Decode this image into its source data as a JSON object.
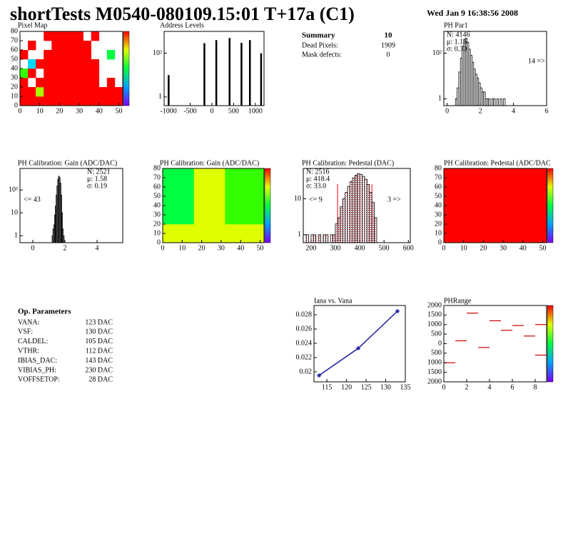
{
  "header": {
    "title": "shortTests M0540-080109.15:01 T+17a (C1)",
    "date": "Wed Jan  9 16:38:56 2008"
  },
  "summary": {
    "title": "Summary",
    "value": "10",
    "rows": [
      [
        "Dead Pixels:",
        "1909"
      ],
      [
        "Mask defects:",
        "0"
      ]
    ]
  },
  "op_parameters": {
    "title": "Op. Parameters",
    "rows": [
      [
        "VANA:",
        "123 DAC"
      ],
      [
        "VSF:",
        "130 DAC"
      ],
      [
        "CALDEL:",
        "105 DAC"
      ],
      [
        "VTHR:",
        "112 DAC"
      ],
      [
        "IBIAS_DAC:",
        "143 DAC"
      ],
      [
        "VIBIAS_PH:",
        "230 DAC"
      ],
      [
        "VOFFSETOP:",
        "28 DAC"
      ]
    ]
  },
  "chart_data": [
    {
      "type": "heatmap",
      "title": "Pixel Map",
      "xlim": [
        0,
        52
      ],
      "ylim": [
        0,
        80
      ],
      "xticks": [
        0,
        10,
        20,
        30,
        40,
        50
      ],
      "yticks": [
        0,
        10,
        20,
        30,
        40,
        50,
        60,
        70,
        80
      ],
      "zlim": [
        0,
        10
      ],
      "z": [
        [
          10,
          10,
          10,
          10,
          10,
          10,
          10,
          10,
          10,
          10,
          10,
          10,
          10
        ],
        [
          10,
          10,
          7,
          10,
          10,
          10,
          10,
          10,
          10,
          10,
          10,
          10,
          10
        ],
        [
          10,
          null,
          10,
          10,
          10,
          10,
          10,
          10,
          10,
          10,
          null,
          10,
          null
        ],
        [
          6,
          10,
          null,
          10,
          10,
          10,
          10,
          10,
          10,
          10,
          null,
          null,
          null
        ],
        [
          null,
          3,
          10,
          10,
          10,
          10,
          10,
          10,
          10,
          10,
          null,
          null,
          null
        ],
        [
          10,
          null,
          null,
          10,
          10,
          10,
          10,
          10,
          10,
          null,
          null,
          5,
          null
        ],
        [
          null,
          10,
          null,
          null,
          10,
          10,
          10,
          10,
          10,
          null,
          null,
          null,
          null
        ],
        [
          null,
          null,
          null,
          10,
          10,
          10,
          10,
          10,
          null,
          10,
          null,
          null,
          null
        ]
      ]
    },
    {
      "type": "bar",
      "title": "Address Levels",
      "log_y": true,
      "xlim": [
        -1100,
        1200
      ],
      "ylim": [
        0.4,
        1000
      ],
      "xticks": [
        -1000,
        -500,
        0,
        500,
        1000
      ],
      "yticks": [
        1,
        {
          "value": 100,
          "label": "10²"
        }
      ],
      "color": "#000000",
      "x": [
        -1000,
        -177,
        97,
        403,
        677,
        871,
        1129
      ],
      "values": [
        10,
        290,
        400,
        500,
        300,
        400,
        100
      ]
    },
    {
      "type": "histogram",
      "title": "PH Par1",
      "log_y": true,
      "xlim": [
        -0.2,
        6
      ],
      "ylim": [
        0.5,
        900
      ],
      "xticks": [
        0,
        2,
        4,
        6
      ],
      "yticks": [
        1,
        {
          "value": 100,
          "label": "10²"
        }
      ],
      "color": "#000000",
      "stats": [
        {
          "text": "N: 4146"
        },
        {
          "text": "μ: 1.16"
        },
        {
          "text": "σ: 0.30"
        }
      ],
      "annotations": [
        "14 =>"
      ],
      "bins": [
        0.5,
        0.6,
        0.7,
        0.8,
        0.9,
        1.0,
        1.1,
        1.2,
        1.3,
        1.4,
        1.5,
        1.6,
        1.7,
        1.8,
        1.9,
        2.0,
        2.1,
        2.2,
        2.3,
        2.4,
        2.5,
        2.6,
        2.7,
        2.8,
        2.9,
        3.0,
        3.1,
        3.2,
        3.3,
        3.4,
        3.5
      ],
      "values": [
        1,
        3,
        15,
        60,
        200,
        400,
        450,
        300,
        150,
        80,
        40,
        20,
        12,
        8,
        5,
        3,
        2,
        2,
        1,
        1,
        1,
        0,
        1,
        1,
        0,
        1,
        0,
        1,
        0,
        1
      ]
    },
    {
      "type": "histogram",
      "title": "PH Calibration: Gain (ADC/DAC)",
      "log_y": true,
      "xlim": [
        -0.8,
        5.6
      ],
      "ylim": [
        0.5,
        870
      ],
      "xticks": [
        0,
        2,
        4
      ],
      "yticks": [
        1,
        10,
        {
          "value": 100,
          "label": "10²"
        }
      ],
      "color": "#000000",
      "stats": [
        {
          "text": "N: 2521"
        },
        {
          "text": "μ: 1.58"
        },
        {
          "text": "σ: 0.19"
        }
      ],
      "annotations": [
        "<= 43"
      ],
      "bins": [
        1.2,
        1.25,
        1.3,
        1.35,
        1.4,
        1.45,
        1.5,
        1.55,
        1.6,
        1.65,
        1.7,
        1.75,
        1.8,
        1.85,
        1.9,
        1.95
      ],
      "values": [
        1,
        2,
        3,
        8,
        20,
        60,
        150,
        300,
        400,
        350,
        200,
        60,
        10,
        2,
        1
      ]
    },
    {
      "type": "heatmap",
      "title": "PH Calibration: Gain (ADC/DAC)",
      "xlim": [
        0,
        52
      ],
      "ylim": [
        0,
        80
      ],
      "xticks": [
        0,
        10,
        20,
        30,
        40,
        50
      ],
      "yticks": [
        0,
        10,
        20,
        30,
        40,
        50,
        60,
        70,
        80
      ],
      "zlim": [
        0,
        10
      ],
      "z": [
        [
          7.5,
          7.5,
          7.5,
          7.5,
          7.5,
          7.5,
          7.5,
          7.5,
          7.5,
          7.5,
          7.5,
          7.5,
          7.5
        ],
        [
          7.5,
          7.5,
          7.5,
          7.5,
          7.5,
          7.5,
          7.5,
          7.5,
          7.5,
          7.5,
          7.5,
          7.5,
          7.5
        ],
        [
          5,
          5,
          5,
          5,
          7.5,
          7.5,
          7.5,
          7.5,
          6,
          6,
          6,
          6,
          6
        ],
        [
          5,
          5,
          5,
          5,
          7.5,
          7.5,
          7.5,
          7.5,
          6,
          6,
          6,
          6,
          6
        ],
        [
          5,
          5,
          5,
          5,
          7.5,
          7.5,
          7.5,
          7.5,
          6,
          6,
          6,
          6,
          6
        ],
        [
          5,
          5,
          5,
          5,
          7.5,
          7.5,
          7.5,
          7.5,
          6,
          6,
          6,
          6,
          6
        ],
        [
          5,
          5,
          5,
          5,
          7.5,
          7.5,
          7.5,
          7.5,
          6,
          6,
          6,
          6,
          6
        ],
        [
          5,
          5,
          5,
          5,
          7.5,
          7.5,
          7.5,
          7.5,
          6,
          6,
          6,
          6,
          6
        ]
      ]
    },
    {
      "type": "histogram",
      "title": "PH Calibration: Pedestal (DAC)",
      "log_y": true,
      "xlim": [
        168,
        608
      ],
      "ylim": [
        0.6,
        70
      ],
      "xticks": [
        200,
        300,
        400,
        500,
        600
      ],
      "yticks": [
        1,
        10
      ],
      "color": "#000000",
      "fill": "#e8a0a8",
      "stats": [
        {
          "text": "N: 2516"
        },
        {
          "text": "μ: 418.4",
          "color": "#ff0000"
        },
        {
          "text": "σ: 33.0",
          "color": "#ff0000"
        }
      ],
      "annotations": [
        "<= 9",
        "3 =>"
      ],
      "markers": [
        309,
        450
      ],
      "marker_color": "#ff0000",
      "bins": [
        180,
        190,
        200,
        210,
        220,
        230,
        240,
        250,
        260,
        270,
        280,
        290,
        300,
        310,
        320,
        330,
        340,
        350,
        360,
        370,
        380,
        390,
        400,
        410,
        420,
        430,
        440,
        450,
        460,
        470
      ],
      "values": [
        1,
        0,
        1,
        1,
        0,
        1,
        0,
        1,
        1,
        0,
        1,
        1,
        2,
        3,
        6,
        10,
        15,
        22,
        30,
        38,
        45,
        50,
        48,
        42,
        35,
        25,
        15,
        8,
        3
      ]
    },
    {
      "type": "heatmap",
      "title": "PH Calibration: Pedestal (ADC/DAC",
      "xlim": [
        0,
        52
      ],
      "ylim": [
        0,
        80
      ],
      "xticks": [
        0,
        10,
        20,
        30,
        40,
        50
      ],
      "yticks": [
        0,
        10,
        20,
        30,
        40,
        50,
        60,
        70,
        80
      ],
      "zlim": [
        0,
        10
      ],
      "z": [
        [
          10,
          10
        ],
        [
          10,
          10
        ]
      ]
    },
    {
      "type": "line",
      "title": "Iana vs. Vana",
      "xlim": [
        111.7,
        135
      ],
      "ylim": [
        0.0186,
        0.0293
      ],
      "xticks": [
        115,
        120,
        125,
        130,
        135
      ],
      "yticks": [
        0.02,
        0.022,
        0.024,
        0.026,
        0.028
      ],
      "color": "#1a1aa0",
      "x": [
        113,
        123,
        133
      ],
      "values": [
        0.0195,
        0.0233,
        0.0285
      ]
    },
    {
      "type": "segment",
      "title": "PHRange",
      "xlim": [
        0,
        9
      ],
      "ylim": [
        -2000,
        2000
      ],
      "xticks": [
        0,
        2,
        4,
        6,
        8
      ],
      "color": "#cc0000",
      "colorbar": true,
      "yticks": [
        {
          "value": 2000,
          "label": "2000"
        },
        {
          "value": 1500,
          "label": "1500"
        },
        {
          "value": 1000,
          "label": "1000"
        },
        500,
        0,
        {
          "value": -500,
          "label": "500"
        },
        {
          "value": -1000,
          "label": "1000"
        },
        {
          "value": -1500,
          "label": "1500"
        },
        {
          "value": -2000,
          "label": "2000"
        }
      ],
      "x": [
        0,
        1,
        2,
        3,
        4,
        5,
        6,
        7,
        8,
        8
      ],
      "values": [
        -1000,
        150,
        1600,
        -200,
        1200,
        700,
        950,
        400,
        1000,
        -600
      ]
    }
  ]
}
